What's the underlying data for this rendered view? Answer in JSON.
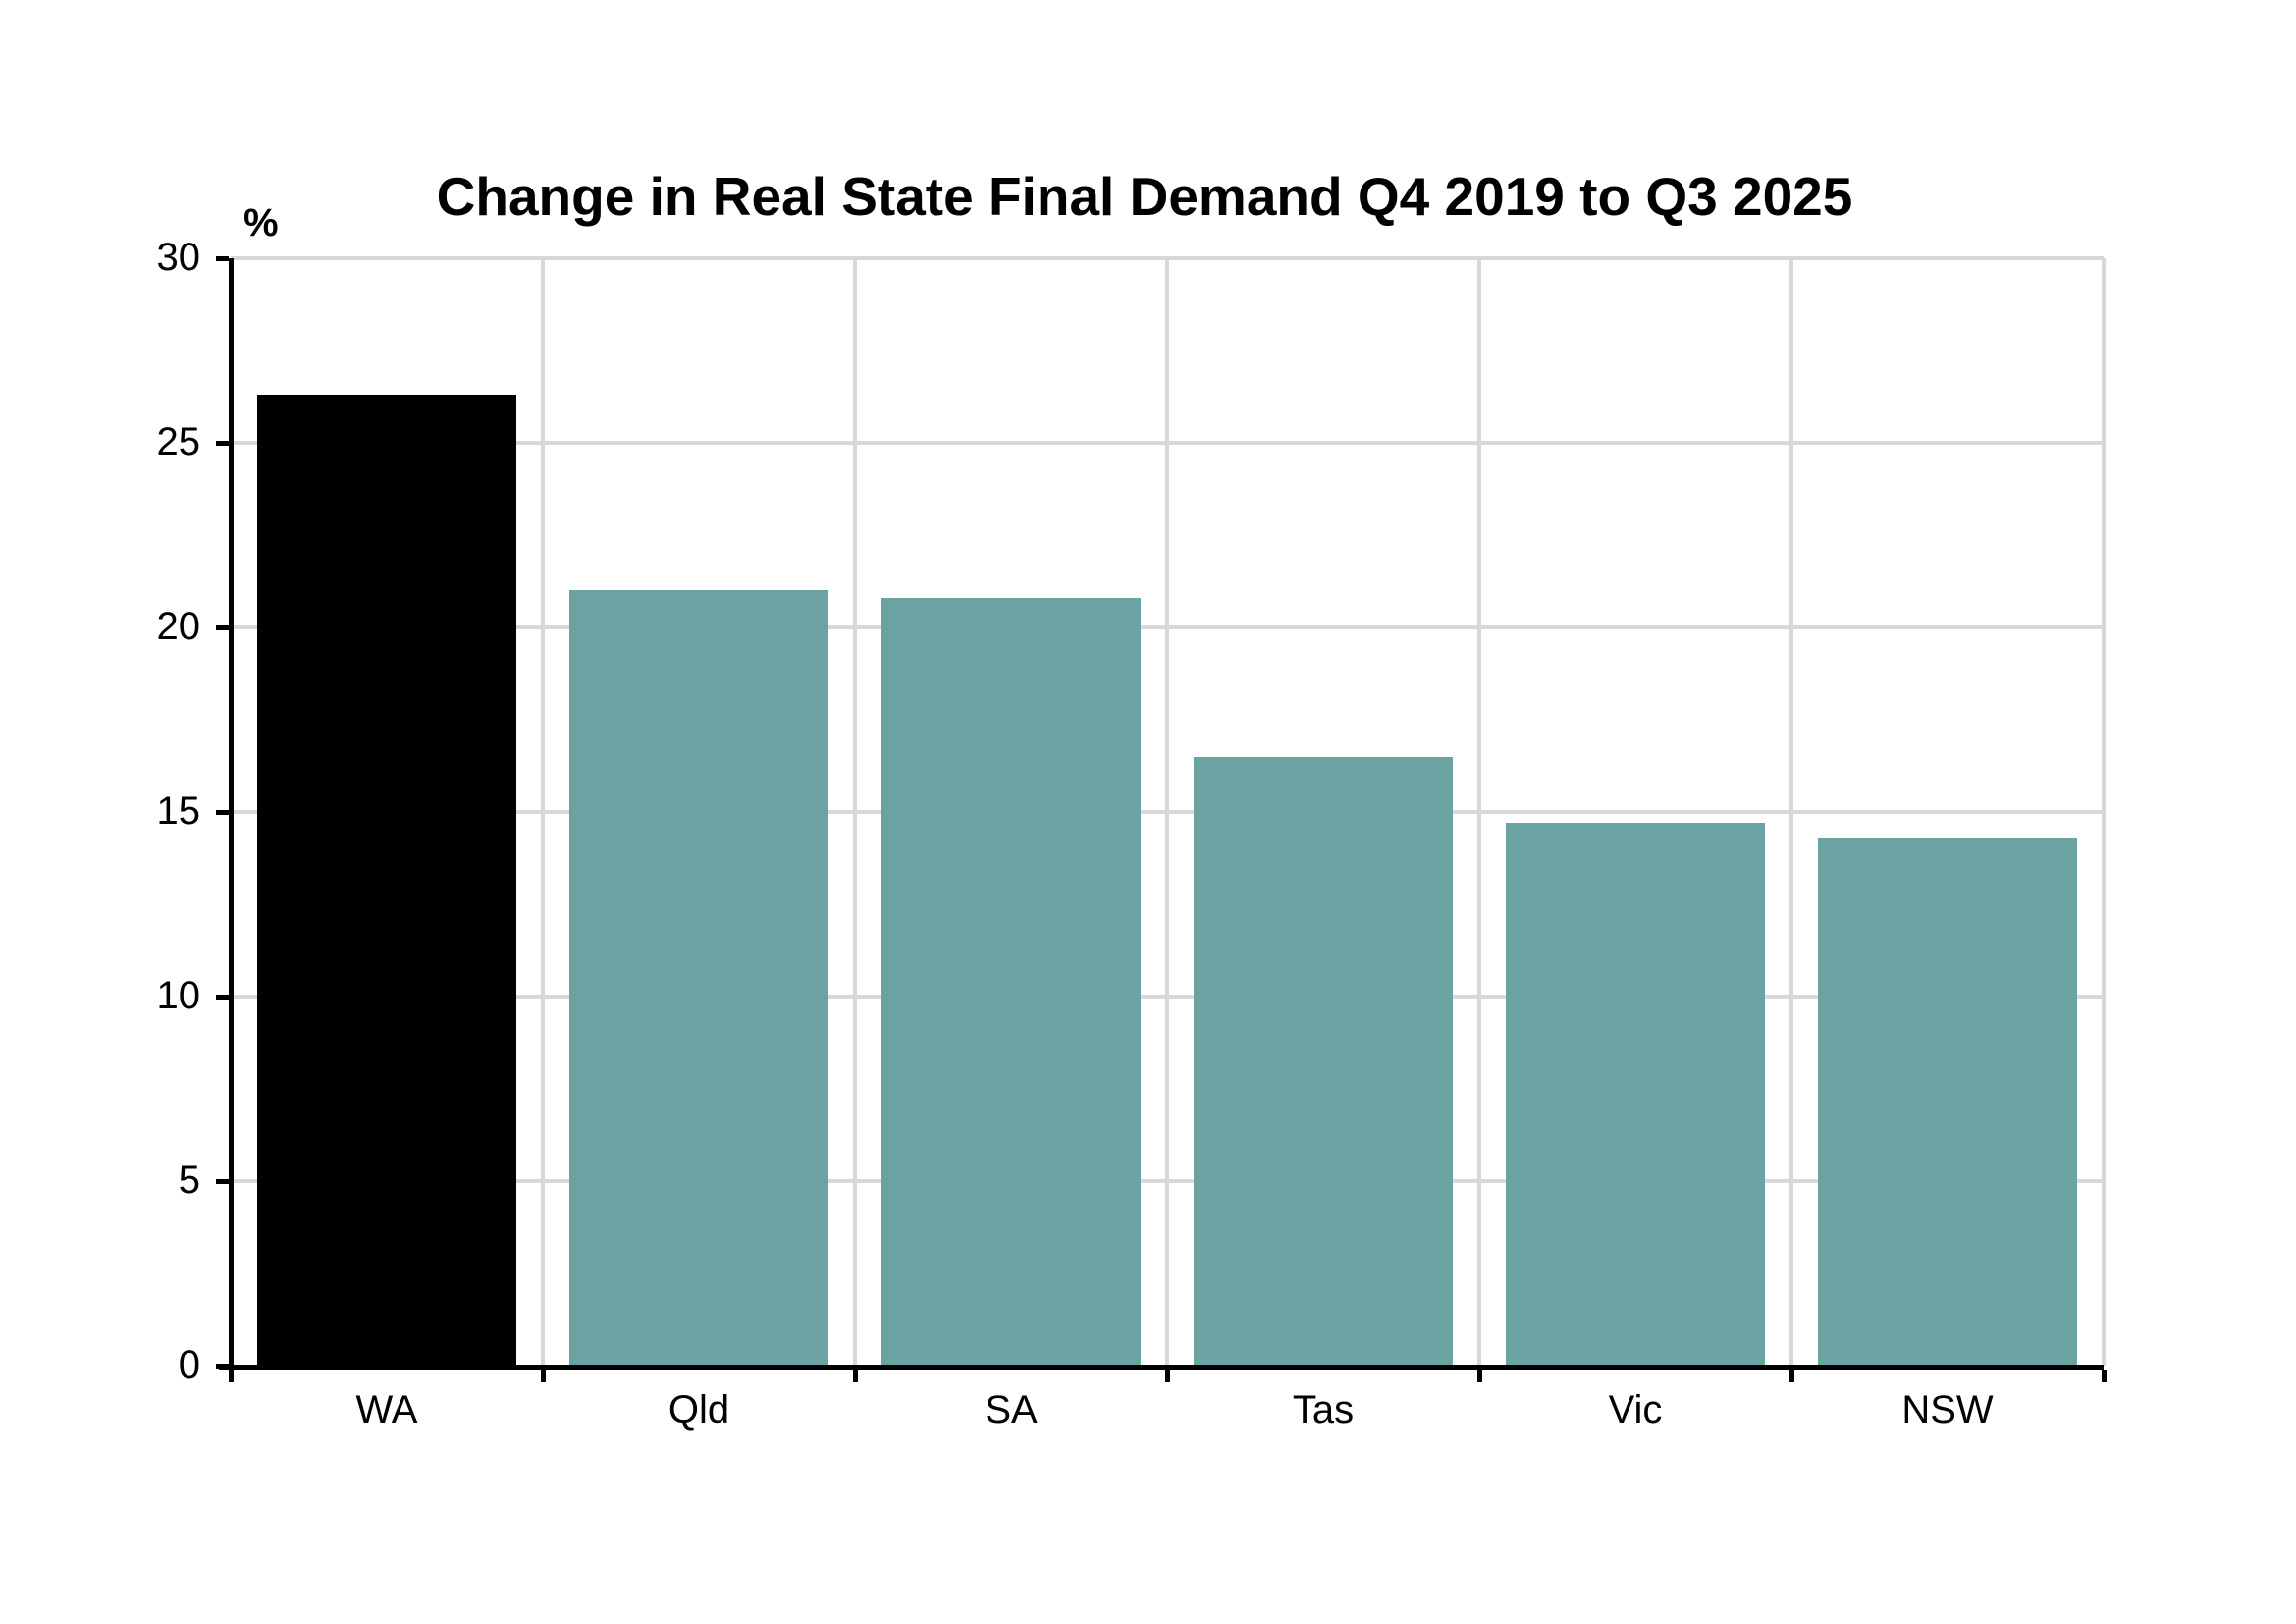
{
  "chart_data": {
    "type": "bar",
    "title": "Change in Real State Final Demand Q4 2019 to Q3 2025",
    "unit_label": "%",
    "categories": [
      "WA",
      "Qld",
      "SA",
      "Tas",
      "Vic",
      "NSW"
    ],
    "values": [
      26.3,
      21.0,
      20.8,
      16.5,
      14.7,
      14.3
    ],
    "bar_colors": [
      "#000000",
      "#6AA3A2",
      "#6AA3A2",
      "#6AA3A2",
      "#6AA3A2",
      "#6AA3A2"
    ],
    "highlighted_category": "WA",
    "xlabel": "",
    "ylabel": "%",
    "ylim": [
      0,
      30
    ],
    "yticks": [
      0,
      5,
      10,
      15,
      20,
      25,
      30
    ],
    "grid": true,
    "legend": "none"
  },
  "colors": {
    "highlight_bar": "#000000",
    "default_bar": "#6AA3A2",
    "gridline": "#D8D8D8",
    "axis": "#000000",
    "text": "#000000",
    "background": "#FFFFFF"
  }
}
